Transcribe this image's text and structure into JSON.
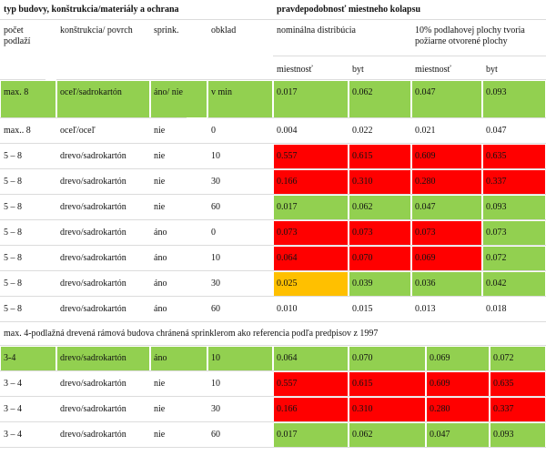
{
  "header": {
    "left": "typ budovy, konštrukcia/materiály a ochrana",
    "right": "pravdepodobnosť miestneho kolapsu"
  },
  "columns": {
    "floors": "počet podlaží",
    "construction": "konštrukcia/ povrch",
    "sprinkler": "sprink.",
    "cladding": "obklad",
    "nominal": "nominálna distribúcia",
    "open": "10% podlahovej plochy tvoria požiarne otvorené plochy",
    "sub": [
      "miestnosť",
      "byt",
      "miestnosť",
      "byt"
    ]
  },
  "table": {
    "rows": [
      [
        "max. 8",
        "oceľ/sadrokartón",
        "áno/ nie",
        "v min",
        "0.017",
        "0.062",
        "0.047",
        "0.093"
      ],
      [
        "max.. 8",
        "oceľ/oceľ",
        "nie",
        "0",
        "0.004",
        "0.022",
        "0.021",
        "0.047"
      ],
      [
        "5 – 8",
        "drevo/sadrokartón",
        "nie",
        "10",
        "0.557",
        "0.615",
        "0.609",
        "0.635"
      ],
      [
        "5 – 8",
        "drevo/sadrokartón",
        "nie",
        "30",
        "0.166",
        "0.310",
        "0.280",
        "0.337"
      ],
      [
        "5 – 8",
        "drevo/sadrokartón",
        "nie",
        "60",
        "0.017",
        "0.062",
        "0.047",
        "0.093"
      ],
      [
        "5 – 8",
        "drevo/sadrokartón",
        "áno",
        "0",
        "0.073",
        "0.073",
        "0.073",
        "0.073"
      ],
      [
        "5 – 8",
        "drevo/sadrokartón",
        "áno",
        "10",
        "0.064",
        "0.070",
        "0.069",
        "0.072"
      ],
      [
        "5 – 8",
        "drevo/sadrokartón",
        "áno",
        "30",
        "0.025",
        "0.039",
        "0.036",
        "0.042"
      ],
      [
        "5 – 8",
        "drevo/sadrokartón",
        "áno",
        "60",
        "0.010",
        "0.015",
        "0.013",
        "0.018"
      ]
    ],
    "fills": [
      [
        "#92d050",
        "#92d050",
        "#92d050",
        "#92d050",
        "#92d050",
        "#92d050",
        "#92d050",
        "#92d050"
      ],
      [
        null,
        null,
        null,
        null,
        null,
        null,
        null,
        null
      ],
      [
        null,
        null,
        null,
        null,
        "#ff0000",
        "#ff0000",
        "#ff0000",
        "#ff0000"
      ],
      [
        null,
        null,
        null,
        null,
        "#ff0000",
        "#ff0000",
        "#ff0000",
        "#ff0000"
      ],
      [
        null,
        null,
        null,
        null,
        "#92d050",
        "#92d050",
        "#92d050",
        "#92d050"
      ],
      [
        null,
        null,
        null,
        null,
        "#ff0000",
        "#ff0000",
        "#ff0000",
        "#92d050"
      ],
      [
        null,
        null,
        null,
        null,
        "#ff0000",
        "#ff0000",
        "#ff0000",
        "#92d050"
      ],
      [
        null,
        null,
        null,
        null,
        "#ffc000",
        "#92d050",
        "#92d050",
        "#92d050"
      ],
      [
        null,
        null,
        null,
        null,
        null,
        null,
        null,
        null
      ]
    ]
  },
  "note": "max. 4-podlažná drevená rámová budova chránená sprinklerom ako referencia podľa predpisov z 1997",
  "table2": {
    "rows": [
      [
        "3-4",
        "drevo/sadrokartón",
        "áno",
        "10",
        "0.064",
        "0.070",
        "0.069",
        "0.072"
      ],
      [
        "3 – 4",
        "drevo/sadrokartón",
        "nie",
        "10",
        "0.557",
        "0.615",
        "0.609",
        "0.635"
      ],
      [
        "3 – 4",
        "drevo/sadrokartón",
        "nie",
        "30",
        "0.166",
        "0.310",
        "0.280",
        "0.337"
      ],
      [
        "3 – 4",
        "drevo/sadrokartón",
        "nie",
        "60",
        "0.017",
        "0.062",
        "0.047",
        "0.093"
      ]
    ],
    "fills": [
      [
        "#92d050",
        "#92d050",
        "#92d050",
        "#92d050",
        "#92d050",
        "#92d050",
        "#92d050",
        "#92d050"
      ],
      [
        null,
        null,
        null,
        null,
        "#ff0000",
        "#ff0000",
        "#ff0000",
        "#ff0000"
      ],
      [
        null,
        null,
        null,
        null,
        "#ff0000",
        "#ff0000",
        "#ff0000",
        "#ff0000"
      ],
      [
        null,
        null,
        null,
        null,
        "#92d050",
        "#92d050",
        "#92d050",
        "#92d050"
      ]
    ]
  }
}
